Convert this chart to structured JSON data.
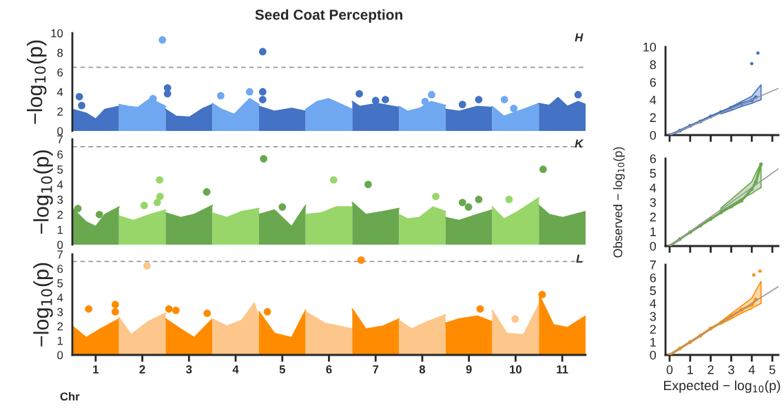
{
  "chart_data": [
    {
      "type": "area",
      "title": "Seed Coat Perception",
      "ylabel": "−log$_{10}$(p)",
      "annotations": [
        "H"
      ],
      "xlim": [
        0.5,
        11.5
      ],
      "xticks": [
        1,
        2,
        3,
        4,
        5,
        6,
        7,
        8,
        9,
        10,
        11
      ],
      "ylim": [
        0,
        10
      ],
      "yticks": [
        0,
        2,
        4,
        6,
        8,
        10
      ],
      "tick_labels": "y",
      "ref_lines": [
        {
          "axis": "y",
          "value": 6.5,
          "color": "#999999",
          "line_style": "dashed"
        }
      ],
      "series": [
        {
          "color": "#4472c4",
          "x": [
            0.5,
            0.8,
            1.0,
            1.2,
            1.5
          ],
          "values": [
            2.2,
            1.8,
            1.2,
            2.2,
            2.5
          ]
        },
        {
          "color": "#6fa8f0",
          "x": [
            1.5,
            1.71,
            1.91,
            2.17,
            2.5
          ],
          "values": [
            2.7,
            2.5,
            2.4,
            3.3,
            2.5
          ]
        },
        {
          "color": "#4472c4",
          "x": [
            2.5,
            2.72,
            3.01,
            3.3,
            3.5
          ],
          "values": [
            2.2,
            1.5,
            1.4,
            2.3,
            2.7
          ]
        },
        {
          "color": "#6fa8f0",
          "x": [
            3.5,
            3.7,
            3.97,
            4.3,
            4.5
          ],
          "values": [
            2.8,
            2.2,
            1.7,
            3.3,
            2.7
          ]
        },
        {
          "color": "#4472c4",
          "x": [
            4.5,
            4.83,
            5.2,
            5.5
          ],
          "values": [
            2.5,
            2.0,
            2.3,
            2.0
          ]
        },
        {
          "color": "#6fa8f0",
          "x": [
            5.5,
            5.75,
            5.99,
            6.5
          ],
          "values": [
            2.2,
            3.0,
            3.3,
            2.2
          ]
        },
        {
          "color": "#4472c4",
          "x": [
            6.5,
            6.66,
            7.04,
            7.5
          ],
          "values": [
            3.0,
            2.5,
            2.8,
            2.4
          ]
        },
        {
          "color": "#6fa8f0",
          "x": [
            7.5,
            7.69,
            7.94,
            8.19,
            8.5
          ],
          "values": [
            2.5,
            2.0,
            2.3,
            3.0,
            2.6
          ]
        },
        {
          "color": "#4472c4",
          "x": [
            8.5,
            8.79,
            9.18,
            9.5
          ],
          "values": [
            2.2,
            2.0,
            2.5,
            2.4
          ]
        },
        {
          "color": "#6fa8f0",
          "x": [
            9.5,
            9.75,
            10.05,
            10.5
          ],
          "values": [
            2.5,
            1.5,
            2.0,
            2.8
          ]
        },
        {
          "color": "#4472c4",
          "x": [
            10.5,
            10.72,
            10.91,
            11.11,
            11.34,
            11.5
          ],
          "values": [
            2.8,
            2.6,
            3.4,
            2.5,
            3.0,
            2.7
          ]
        },
        {
          "type": "scatter",
          "marker": "circle",
          "x": [
            0.65,
            0.7,
            2.43,
            2.23,
            2.54,
            2.54,
            3.68,
            4.3,
            4.58,
            4.58,
            4.58,
            6.65,
            7.0,
            7.21,
            8.06,
            8.2,
            9.21,
            8.86,
            9.76,
            9.96,
            11.34
          ],
          "values": [
            3.5,
            2.6,
            9.3,
            3.3,
            4.4,
            3.8,
            3.6,
            4.0,
            8.1,
            4.0,
            3.2,
            3.8,
            3.1,
            3.2,
            3.0,
            3.7,
            3.2,
            2.7,
            3.2,
            2.3,
            3.7
          ],
          "colors": [
            "#4472c4",
            "#4472c4",
            "#6fa8f0",
            "#6fa8f0",
            "#4472c4",
            "#4472c4",
            "#6fa8f0",
            "#6fa8f0",
            "#4472c4",
            "#4472c4",
            "#4472c4",
            "#4472c4",
            "#4472c4",
            "#4472c4",
            "#6fa8f0",
            "#6fa8f0",
            "#4472c4",
            "#4472c4",
            "#6fa8f0",
            "#6fa8f0",
            "#4472c4"
          ]
        }
      ]
    },
    {
      "type": "area",
      "ylabel": "−log$_{10}$(p)",
      "annotations": [
        "K"
      ],
      "xlim": [
        0.5,
        11.5
      ],
      "xticks": [
        1,
        2,
        3,
        4,
        5,
        6,
        7,
        8,
        9,
        10,
        11
      ],
      "ylim": [
        0,
        7
      ],
      "yticks": [
        0,
        1,
        2,
        3,
        4,
        5,
        6,
        7
      ],
      "tick_labels": "y",
      "ref_lines": [
        {
          "axis": "y",
          "value": 6.5,
          "color": "#999999",
          "line_style": "dashed"
        }
      ],
      "series": [
        {
          "color": "#6aa84f",
          "x": [
            0.5,
            0.8,
            1.0,
            1.2,
            1.5
          ],
          "values": [
            2.4,
            1.5,
            1.2,
            2.0,
            2.5
          ]
        },
        {
          "color": "#98d66a",
          "x": [
            1.5,
            1.81,
            2.17,
            2.5
          ],
          "values": [
            1.9,
            1.6,
            2.0,
            2.3
          ]
        },
        {
          "color": "#6aa84f",
          "x": [
            2.5,
            2.82,
            3.11,
            3.5
          ],
          "values": [
            2.1,
            1.8,
            2.0,
            2.6
          ]
        },
        {
          "color": "#98d66a",
          "x": [
            3.5,
            3.81,
            4.13,
            4.5
          ],
          "values": [
            2.1,
            1.8,
            2.2,
            2.4
          ]
        },
        {
          "color": "#6aa84f",
          "x": [
            4.5,
            4.83,
            5.2,
            5.5
          ],
          "values": [
            2.0,
            2.3,
            1.2,
            2.6
          ]
        },
        {
          "color": "#98d66a",
          "x": [
            5.5,
            5.83,
            6.15,
            6.5
          ],
          "values": [
            2.0,
            2.1,
            2.5,
            2.5
          ]
        },
        {
          "color": "#6aa84f",
          "x": [
            6.5,
            6.79,
            7.16,
            7.5
          ],
          "values": [
            2.8,
            2.0,
            2.2,
            2.4
          ]
        },
        {
          "color": "#98d66a",
          "x": [
            7.5,
            7.69,
            7.94,
            8.23,
            8.5
          ],
          "values": [
            2.0,
            1.7,
            1.8,
            2.5,
            2.2
          ]
        },
        {
          "color": "#6aa84f",
          "x": [
            8.5,
            8.79,
            9.18,
            9.5
          ],
          "values": [
            1.8,
            1.6,
            2.0,
            2.3
          ]
        },
        {
          "color": "#98d66a",
          "x": [
            9.5,
            9.75,
            10.05,
            10.5
          ],
          "values": [
            2.5,
            1.7,
            2.2,
            3.1
          ]
        },
        {
          "color": "#6aa84f",
          "x": [
            10.5,
            10.72,
            11.01,
            11.5
          ],
          "values": [
            2.6,
            2.0,
            1.8,
            2.2
          ]
        },
        {
          "type": "scatter",
          "marker": "circle",
          "x": [
            0.62,
            1.08,
            2.04,
            2.37,
            2.38,
            2.32,
            3.38,
            4.6,
            5.0,
            6.1,
            6.84,
            8.29,
            8.86,
            9.21,
            8.99,
            9.86,
            10.59
          ],
          "values": [
            2.4,
            2.0,
            2.6,
            4.3,
            3.2,
            2.8,
            3.5,
            5.7,
            2.5,
            4.3,
            4.0,
            3.2,
            2.8,
            3.0,
            2.5,
            3.0,
            5.0
          ],
          "colors": [
            "#6aa84f",
            "#6aa84f",
            "#98d66a",
            "#98d66a",
            "#98d66a",
            "#98d66a",
            "#6aa84f",
            "#6aa84f",
            "#6aa84f",
            "#98d66a",
            "#6aa84f",
            "#98d66a",
            "#6aa84f",
            "#6aa84f",
            "#6aa84f",
            "#98d66a",
            "#6aa84f"
          ]
        }
      ]
    },
    {
      "type": "area",
      "ylabel": "−log$_{10}$(p)",
      "xlabel": "Chr",
      "annotations": [
        "L"
      ],
      "xlim": [
        0.5,
        11.5
      ],
      "xticks": [
        1,
        2,
        3,
        4,
        5,
        6,
        7,
        8,
        9,
        10,
        11
      ],
      "ylim": [
        0,
        7
      ],
      "yticks": [
        0,
        1,
        2,
        3,
        4,
        5,
        6,
        7
      ],
      "ref_lines": [
        {
          "axis": "y",
          "value": 6.5,
          "color": "#999999",
          "line_style": "dashed"
        }
      ],
      "series": [
        {
          "color": "#ff8c00",
          "x": [
            0.5,
            0.8,
            1.1,
            1.5
          ],
          "values": [
            2.0,
            1.2,
            1.8,
            2.5
          ]
        },
        {
          "color": "#fdc68a",
          "x": [
            1.5,
            1.76,
            2.12,
            2.5
          ],
          "values": [
            2.6,
            1.4,
            2.3,
            2.9
          ]
        },
        {
          "color": "#ff8c00",
          "x": [
            2.5,
            2.82,
            3.11,
            3.5
          ],
          "values": [
            2.5,
            1.8,
            1.2,
            2.5
          ]
        },
        {
          "color": "#fdc68a",
          "x": [
            3.5,
            3.81,
            4.13,
            4.4,
            4.5
          ],
          "values": [
            2.5,
            2.0,
            2.4,
            3.6,
            2.5
          ]
        },
        {
          "color": "#ff8c00",
          "x": [
            4.5,
            4.83,
            5.2,
            5.5
          ],
          "values": [
            3.0,
            1.5,
            1.2,
            3.1
          ]
        },
        {
          "color": "#fdc68a",
          "x": [
            5.5,
            5.91,
            6.5
          ],
          "values": [
            3.0,
            2.2,
            1.8
          ]
        },
        {
          "color": "#ff8c00",
          "x": [
            6.5,
            6.79,
            7.16,
            7.5
          ],
          "values": [
            3.2,
            1.8,
            2.0,
            2.5
          ]
        },
        {
          "color": "#fdc68a",
          "x": [
            7.5,
            7.77,
            8.1,
            8.5
          ],
          "values": [
            2.4,
            1.8,
            2.3,
            2.8
          ]
        },
        {
          "color": "#ff8c00",
          "x": [
            8.5,
            8.79,
            9.18,
            9.5
          ],
          "values": [
            2.2,
            2.5,
            2.7,
            2.3
          ]
        },
        {
          "color": "#fdc68a",
          "x": [
            9.5,
            9.81,
            10.17,
            10.5
          ],
          "values": [
            3.1,
            1.5,
            1.4,
            3.5
          ]
        },
        {
          "color": "#ff8c00",
          "x": [
            10.5,
            10.81,
            11.11,
            11.5
          ],
          "values": [
            4.2,
            2.1,
            1.9,
            2.7
          ]
        },
        {
          "type": "scatter",
          "marker": "circle",
          "x": [
            0.85,
            1.42,
            1.42,
            2.1,
            2.57,
            2.72,
            3.39,
            4.68,
            6.69,
            9.24,
            9.99,
            10.57
          ],
          "values": [
            3.2,
            3.5,
            3.0,
            6.2,
            3.2,
            3.1,
            2.9,
            3.0,
            6.6,
            3.2,
            2.5,
            4.2
          ],
          "colors": [
            "#ff8c00",
            "#ff8c00",
            "#ff8c00",
            "#fdc68a",
            "#ff8c00",
            "#ff8c00",
            "#ff8c00",
            "#ff8c00",
            "#ff8c00",
            "#ff8c00",
            "#fdc68a",
            "#ff8c00"
          ]
        }
      ]
    },
    {
      "type": "line",
      "xlim": [
        -0.2,
        5.3
      ],
      "xticks": [
        0,
        1,
        2,
        3,
        4,
        5
      ],
      "ylim": [
        0,
        10
      ],
      "yticks": [
        0,
        2,
        4,
        6,
        8,
        10
      ],
      "tick_labels": "y",
      "series": [
        {
          "color": "#999999",
          "x": [
            0,
            5.3
          ],
          "values": [
            0,
            5.3
          ]
        },
        {
          "color": "#4472c4",
          "marker": "circle",
          "x": [
            0,
            0.5,
            1,
            1.5,
            2,
            2.5,
            3,
            3.5,
            4,
            4.2,
            4.45
          ],
          "values": [
            0,
            0.5,
            1.05,
            1.55,
            2.1,
            2.6,
            3.1,
            3.55,
            3.95,
            4.3,
            null
          ],
          "lower": [
            null,
            null,
            null,
            null,
            null,
            2.4,
            2.8,
            3.25,
            3.6,
            3.8,
            4.0
          ],
          "upper": [
            null,
            null,
            null,
            null,
            null,
            2.6,
            3.2,
            3.8,
            4.4,
            5.0,
            5.7
          ]
        },
        {
          "type": "scatter",
          "marker": "circle",
          "color": "#4472c4",
          "x": [
            4.0,
            4.3
          ],
          "values": [
            8.1,
            9.3
          ]
        }
      ]
    },
    {
      "type": "line",
      "ylabel": "Observed − log$_{10}$(p)",
      "xlim": [
        -0.2,
        5.3
      ],
      "xticks": [
        0,
        1,
        2,
        3,
        4,
        5
      ],
      "ylim": [
        0,
        6
      ],
      "yticks": [
        0,
        1,
        2,
        3,
        4,
        5,
        6
      ],
      "tick_labels": "y",
      "series": [
        {
          "color": "#999999",
          "x": [
            0,
            5.3
          ],
          "values": [
            0,
            5.3
          ]
        },
        {
          "color": "#6aa84f",
          "marker": "circle",
          "x": [
            0,
            0.5,
            1,
            1.5,
            2,
            2.5,
            3,
            3.5,
            4,
            4.2,
            4.45
          ],
          "values": [
            0,
            0.48,
            0.95,
            1.4,
            1.85,
            2.3,
            2.7,
            3.1,
            3.9,
            4.4,
            5.6
          ],
          "lower": [
            null,
            null,
            null,
            null,
            null,
            2.4,
            2.8,
            3.25,
            3.6,
            3.8,
            4.0
          ],
          "upper": [
            null,
            null,
            null,
            null,
            null,
            2.6,
            3.2,
            3.8,
            4.4,
            5.0,
            5.7
          ]
        }
      ]
    },
    {
      "type": "line",
      "xlabel": "Expected − log$_{10}$(p)",
      "xlim": [
        -0.2,
        5.3
      ],
      "xticks": [
        0,
        1,
        2,
        3,
        4,
        5
      ],
      "ylim": [
        0,
        7
      ],
      "yticks": [
        0,
        1,
        2,
        3,
        4,
        5,
        6,
        7
      ],
      "series": [
        {
          "color": "#999999",
          "x": [
            0,
            5.3
          ],
          "values": [
            0,
            5.3
          ]
        },
        {
          "color": "#ff8c00",
          "marker": "circle",
          "x": [
            0,
            0.5,
            1,
            1.5,
            2,
            2.5,
            3,
            3.5,
            4,
            4.2,
            4.45
          ],
          "values": [
            0,
            0.5,
            1.0,
            1.5,
            2.05,
            2.5,
            3.0,
            3.5,
            3.9,
            4.3,
            null
          ],
          "lower": [
            null,
            null,
            null,
            null,
            null,
            2.4,
            2.8,
            3.25,
            3.6,
            3.8,
            4.0
          ],
          "upper": [
            null,
            null,
            null,
            null,
            null,
            2.6,
            3.2,
            3.8,
            4.4,
            5.0,
            5.7
          ]
        },
        {
          "type": "scatter",
          "marker": "circle",
          "color": "#ff8c00",
          "x": [
            4.1,
            4.4
          ],
          "values": [
            6.2,
            6.5
          ]
        }
      ]
    }
  ]
}
